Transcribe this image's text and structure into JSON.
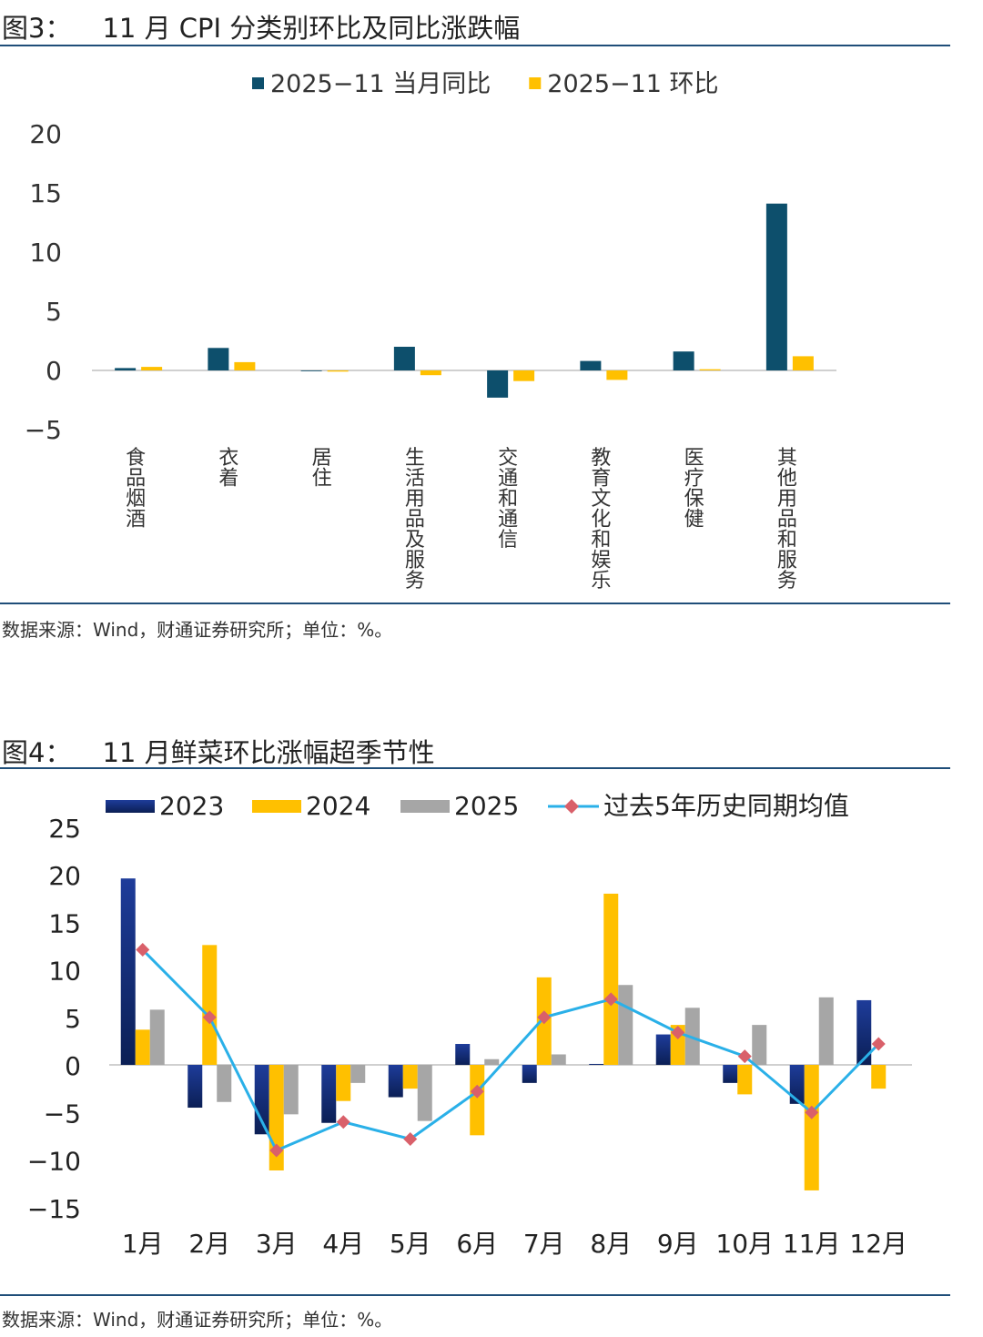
{
  "figure3": {
    "title_label": "图3：",
    "title_text": "11 月 CPI 分类别环比及同比涨跌幅",
    "source": "数据来源：Wind，财通证券研究所；单位：%。",
    "chart_data": {
      "type": "bar",
      "title": "11 月 CPI 分类别环比及同比涨跌幅",
      "categories": [
        "食品烟酒",
        "衣着",
        "居住",
        "生活用品及服务",
        "交通和通信",
        "教育文化和娱乐",
        "医疗保健",
        "其他用品和服务"
      ],
      "series": [
        {
          "name": "2025−11 当月同比",
          "color": "#0d4f6c",
          "values": [
            0.2,
            1.9,
            0.0,
            2.0,
            -2.3,
            0.8,
            1.6,
            14.1
          ]
        },
        {
          "name": "2025−11 环比",
          "color": "#ffc000",
          "values": [
            0.3,
            0.7,
            -0.1,
            -0.4,
            -0.9,
            -0.8,
            0.1,
            1.2
          ]
        }
      ],
      "ylim": [
        -5,
        20
      ],
      "yticks": [
        -5,
        0,
        5,
        10,
        15,
        20
      ],
      "ytick_labels": [
        "−5",
        "0",
        "5",
        "10",
        "15",
        "20"
      ],
      "xlabel": "",
      "ylabel": "",
      "legend": "top-center",
      "grid": false
    }
  },
  "figure4": {
    "title_label": "图4：",
    "title_text": "11 月鲜菜环比涨幅超季节性",
    "source": "数据来源：Wind，财通证券研究所；单位：%。",
    "chart_data": {
      "type": "bar",
      "title": "11 月鲜菜环比涨幅超季节性",
      "categories": [
        "1月",
        "2月",
        "3月",
        "4月",
        "5月",
        "6月",
        "7月",
        "8月",
        "9月",
        "10月",
        "11月",
        "12月"
      ],
      "series": [
        {
          "name": "2023",
          "kind": "bar",
          "color": "#1a2f80",
          "values": [
            19.6,
            -4.5,
            -7.3,
            -6.1,
            -3.4,
            2.2,
            -1.9,
            0.1,
            3.2,
            -1.9,
            -4.1,
            6.8
          ]
        },
        {
          "name": "2024",
          "kind": "bar",
          "color": "#ffc000",
          "values": [
            3.7,
            12.6,
            -11.1,
            -3.8,
            -2.5,
            -7.4,
            9.2,
            18.0,
            4.2,
            -3.1,
            -13.2,
            -2.5
          ]
        },
        {
          "name": "2025",
          "kind": "bar",
          "color": "#a6a6a6",
          "values": [
            5.8,
            -3.9,
            -5.2,
            -1.9,
            -5.9,
            0.6,
            1.1,
            8.4,
            6.0,
            4.2,
            7.1,
            null
          ]
        },
        {
          "name": "过去5年历史同期均值",
          "kind": "line",
          "color": "#2ab0e8",
          "marker_color": "#d9606a",
          "values": [
            12.1,
            5.0,
            -9.0,
            -6.0,
            -7.8,
            -2.8,
            5.0,
            6.9,
            3.4,
            0.9,
            -5.0,
            2.2
          ]
        }
      ],
      "ylim": [
        -15,
        25
      ],
      "yticks": [
        -15,
        -10,
        -5,
        0,
        5,
        10,
        15,
        20,
        25
      ],
      "ytick_labels": [
        "−15",
        "−10",
        "−5",
        "0",
        "5",
        "10",
        "15",
        "20",
        "25"
      ],
      "xlabel": "",
      "ylabel": "",
      "legend": "top",
      "grid": false
    }
  }
}
